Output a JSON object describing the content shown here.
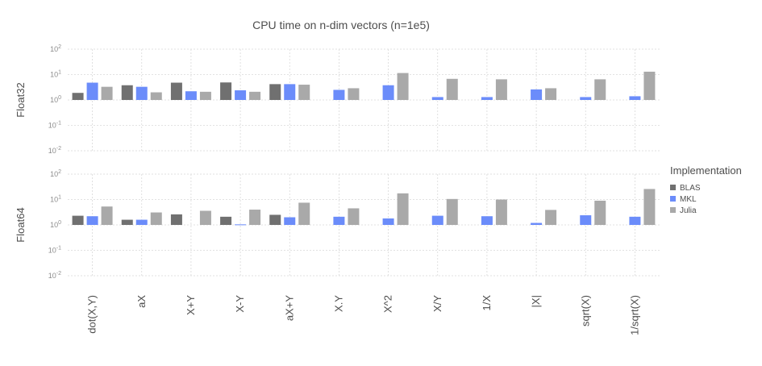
{
  "chart_data": {
    "type": "bar",
    "title": "CPU time on n-dim vectors (n=1e5)",
    "scale": "log10",
    "ylim": [
      0.01,
      100
    ],
    "yticks": [
      {
        "base": "10",
        "exp": "2"
      },
      {
        "base": "10",
        "exp": "1"
      },
      {
        "base": "10",
        "exp": "0"
      },
      {
        "base": "10",
        "exp": "-1"
      },
      {
        "base": "10",
        "exp": "-2"
      }
    ],
    "categories": [
      "dot(X,Y)",
      "aX",
      "X+Y",
      "X-Y",
      "aX+Y",
      "X.Y",
      "X^2",
      "X/Y",
      "1/X",
      "|X|",
      "sqrt(X)",
      "1/sqrt(X)"
    ],
    "legend": {
      "title": "Implementation",
      "placement": "right",
      "items": [
        {
          "name": "BLAS",
          "color": "#707070"
        },
        {
          "name": "MKL",
          "color": "#6b8cfa"
        },
        {
          "name": "Julia",
          "color": "#a9a9a9"
        }
      ]
    },
    "facets": [
      {
        "label": "Float32",
        "series": [
          {
            "name": "BLAS",
            "values": [
              1.9,
              3.8,
              4.8,
              4.9,
              4.2,
              null,
              null,
              null,
              null,
              null,
              null,
              null
            ]
          },
          {
            "name": "MKL",
            "values": [
              4.8,
              3.3,
              2.2,
              2.4,
              4.2,
              2.5,
              3.8,
              1.3,
              1.3,
              2.6,
              1.3,
              1.4
            ]
          },
          {
            "name": "Julia",
            "values": [
              3.3,
              2.0,
              2.1,
              2.1,
              4.0,
              2.9,
              11.5,
              6.8,
              6.5,
              2.9,
              6.5,
              13.0
            ]
          }
        ]
      },
      {
        "label": "Float64",
        "series": [
          {
            "name": "BLAS",
            "values": [
              2.3,
              1.6,
              2.6,
              2.1,
              2.5,
              null,
              null,
              null,
              null,
              null,
              null,
              null
            ]
          },
          {
            "name": "MKL",
            "values": [
              2.2,
              1.6,
              null,
              1.05,
              2.0,
              2.1,
              1.8,
              2.3,
              2.2,
              1.2,
              2.4,
              2.1
            ]
          },
          {
            "name": "Julia",
            "values": [
              5.3,
              3.1,
              3.6,
              4.0,
              7.5,
              4.5,
              17.5,
              10.5,
              10.0,
              3.9,
              9.0,
              26.0
            ]
          }
        ]
      }
    ]
  }
}
